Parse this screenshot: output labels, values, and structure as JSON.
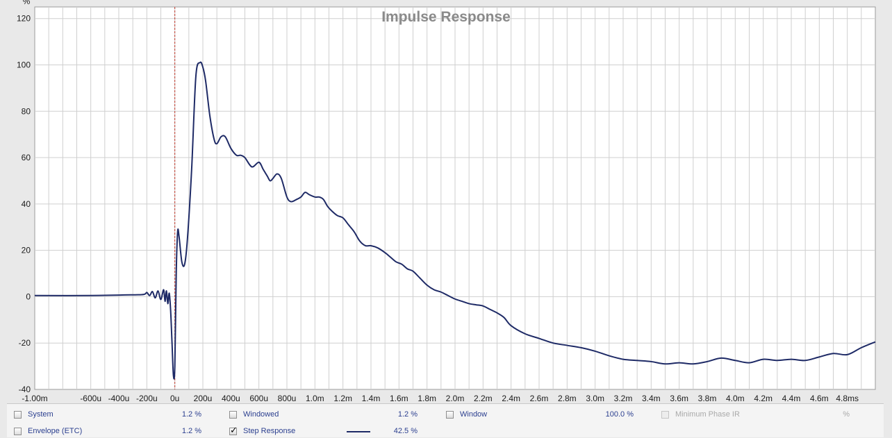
{
  "chart_data": {
    "type": "line",
    "title": "Impulse Response",
    "y_unit": "%",
    "xlim": [
      -0.001,
      0.005
    ],
    "ylim": [
      -40,
      125
    ],
    "y_ticks": [
      120,
      100,
      80,
      60,
      40,
      20,
      0,
      -20,
      -40
    ],
    "x_ticks": [
      {
        "v": -0.001,
        "label": "-1.00m"
      },
      {
        "v": -0.0006,
        "label": "-600u"
      },
      {
        "v": -0.0004,
        "label": "-400u"
      },
      {
        "v": -0.0002,
        "label": "-200u"
      },
      {
        "v": 0,
        "label": "0u"
      },
      {
        "v": 0.0002,
        "label": "200u"
      },
      {
        "v": 0.0004,
        "label": "400u"
      },
      {
        "v": 0.0006,
        "label": "600u"
      },
      {
        "v": 0.0008,
        "label": "800u"
      },
      {
        "v": 0.001,
        "label": "1.0m"
      },
      {
        "v": 0.0012,
        "label": "1.2m"
      },
      {
        "v": 0.0014,
        "label": "1.4m"
      },
      {
        "v": 0.0016,
        "label": "1.6m"
      },
      {
        "v": 0.0018,
        "label": "1.8m"
      },
      {
        "v": 0.002,
        "label": "2.0m"
      },
      {
        "v": 0.0022,
        "label": "2.2m"
      },
      {
        "v": 0.0024,
        "label": "2.4m"
      },
      {
        "v": 0.0026,
        "label": "2.6m"
      },
      {
        "v": 0.0028,
        "label": "2.8m"
      },
      {
        "v": 0.003,
        "label": "3.0m"
      },
      {
        "v": 0.0032,
        "label": "3.2m"
      },
      {
        "v": 0.0034,
        "label": "3.4m"
      },
      {
        "v": 0.0036,
        "label": "3.6m"
      },
      {
        "v": 0.0038,
        "label": "3.8m"
      },
      {
        "v": 0.004,
        "label": "4.0m"
      },
      {
        "v": 0.0042,
        "label": "4.2m"
      },
      {
        "v": 0.0044,
        "label": "4.4m"
      },
      {
        "v": 0.0046,
        "label": "4.6m"
      },
      {
        "v": 0.0048,
        "label": "4.8ms"
      }
    ],
    "grid": true,
    "marker_x": 0,
    "series": [
      {
        "name": "Step Response",
        "color": "#1e2a66",
        "x": [
          -0.001,
          -0.0006,
          -0.0003,
          -0.00022,
          -0.0002,
          -0.00018,
          -0.00016,
          -0.00014,
          -0.00012,
          -0.0001,
          -8e-05,
          -7e-05,
          -6e-05,
          -5e-05,
          -4e-05,
          -3e-05,
          -2e-05,
          -1e-05,
          0,
          1e-05,
          2e-05,
          3e-05,
          5e-05,
          7e-05,
          9e-05,
          0.00012,
          0.00015,
          0.00018,
          0.0002,
          0.00022,
          0.00025,
          0.00028,
          0.0003,
          0.00033,
          0.00036,
          0.0004,
          0.00044,
          0.00047,
          0.0005,
          0.00055,
          0.0006,
          0.00063,
          0.00066,
          0.00068,
          0.0007,
          0.00073,
          0.00076,
          0.0008,
          0.00083,
          0.00087,
          0.0009,
          0.00093,
          0.00096,
          0.001,
          0.00103,
          0.00106,
          0.00109,
          0.00112,
          0.00116,
          0.0012,
          0.00124,
          0.00128,
          0.00132,
          0.00136,
          0.0014,
          0.00145,
          0.0015,
          0.00154,
          0.00158,
          0.00162,
          0.00166,
          0.0017,
          0.00175,
          0.0018,
          0.00185,
          0.0019,
          0.00195,
          0.002,
          0.00205,
          0.0021,
          0.00215,
          0.0022,
          0.00225,
          0.0023,
          0.00235,
          0.0024,
          0.0025,
          0.0026,
          0.0027,
          0.0028,
          0.0029,
          0.003,
          0.0031,
          0.0032,
          0.0033,
          0.0034,
          0.0035,
          0.0036,
          0.0037,
          0.0038,
          0.0039,
          0.004,
          0.0041,
          0.0042,
          0.0043,
          0.0044,
          0.0045,
          0.0046,
          0.0047,
          0.0048,
          0.0049,
          0.005
        ],
        "y": [
          0.5,
          0.5,
          0.8,
          1.0,
          1.8,
          0.5,
          2.2,
          -0.5,
          2.5,
          -1.2,
          3.0,
          -2.0,
          2.5,
          -3.0,
          1.5,
          -6.0,
          -20.0,
          -34.0,
          -30.0,
          10.0,
          28.0,
          26.0,
          15.0,
          14.0,
          25.0,
          55.0,
          95.0,
          101.0,
          99.0,
          93.0,
          78.0,
          68.0,
          66.0,
          69.0,
          69.0,
          64.0,
          61.0,
          61.0,
          60.0,
          56.0,
          58.0,
          55.0,
          52.0,
          50.0,
          51.0,
          53.0,
          51.0,
          43.0,
          41.0,
          42.0,
          43.0,
          45.0,
          44.0,
          43.0,
          43.0,
          42.0,
          39.0,
          37.0,
          35.0,
          34.0,
          31.0,
          28.0,
          24.0,
          22.0,
          22.0,
          21.0,
          19.0,
          17.0,
          15.0,
          14.0,
          12.0,
          11.0,
          8.0,
          5.0,
          3.0,
          2.0,
          0.5,
          -1.0,
          -2.0,
          -3.0,
          -3.5,
          -4.0,
          -5.5,
          -7.0,
          -9.0,
          -12.5,
          -16.0,
          -18.0,
          -20.0,
          -21.0,
          -22.0,
          -23.5,
          -25.5,
          -27.0,
          -27.5,
          -28.0,
          -29.0,
          -28.5,
          -29.0,
          -28.0,
          -26.5,
          -27.5,
          -28.5,
          -27.0,
          -27.5,
          -27.0,
          -27.5,
          -26.0,
          -24.5,
          -25.0,
          -22.0,
          -19.5
        ]
      }
    ]
  },
  "legend": {
    "items": [
      {
        "label": "System",
        "value": "1.2 %",
        "checked": false,
        "disabled": false
      },
      {
        "label": "Windowed",
        "value": "1.2 %",
        "checked": false,
        "disabled": false
      },
      {
        "label": "Window",
        "value": "100.0 %",
        "checked": false,
        "disabled": false
      },
      {
        "label": "Minimum Phase IR",
        "value": "%",
        "checked": false,
        "disabled": true
      },
      {
        "label": "Envelope (ETC)",
        "value": "1.2 %",
        "checked": false,
        "disabled": false
      },
      {
        "label": "Step Response",
        "value": "42.5 %",
        "checked": true,
        "disabled": false
      }
    ]
  }
}
